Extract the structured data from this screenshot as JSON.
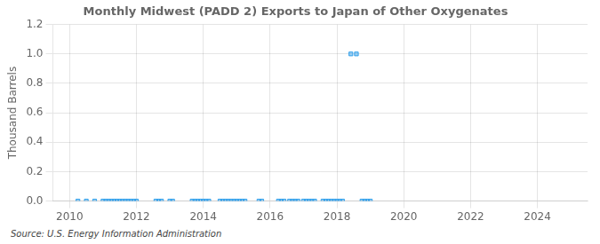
{
  "chart_data": {
    "type": "scatter",
    "title": "Monthly Midwest (PADD 2) Exports to Japan of Other Oxygenates",
    "y_label": "Thousand Barrels",
    "annotations": [
      "Source: U.S. Energy Information Administration"
    ],
    "marker": "square",
    "grid": true,
    "xlim": [
      2009.5,
      2025.5
    ],
    "ylim": [
      0,
      1.2
    ],
    "xticks": [
      2010,
      2012,
      2014,
      2016,
      2018,
      2020,
      2022,
      2024
    ],
    "yticks": [
      {
        "value": 0.0,
        "label": "0.0"
      },
      0.2,
      0.4,
      0.6,
      0.8,
      {
        "value": 1.0,
        "label": "1.0"
      },
      1.2
    ],
    "x": [
      2010.25,
      2010.5,
      2010.75,
      2011.0,
      2011.083,
      2011.167,
      2011.25,
      2011.333,
      2011.417,
      2011.5,
      2011.583,
      2011.667,
      2011.75,
      2011.833,
      2011.917,
      2012.0,
      2012.583,
      2012.667,
      2012.75,
      2013.0,
      2013.083,
      2013.667,
      2013.75,
      2013.833,
      2013.917,
      2014.0,
      2014.083,
      2014.167,
      2014.5,
      2014.583,
      2014.667,
      2014.75,
      2014.833,
      2014.917,
      2015.0,
      2015.083,
      2015.167,
      2015.25,
      2015.667,
      2015.75,
      2016.25,
      2016.333,
      2016.417,
      2016.583,
      2016.667,
      2016.75,
      2016.833,
      2017.0,
      2017.083,
      2017.167,
      2017.25,
      2017.333,
      2017.583,
      2017.667,
      2017.75,
      2017.833,
      2017.917,
      2018.0,
      2018.083,
      2018.167,
      2018.417,
      2018.583,
      2018.75,
      2018.833,
      2018.917,
      2019.0
    ],
    "values": [
      0.0,
      0.0,
      0.0,
      0.0,
      0.0,
      0.0,
      0.0,
      0.0,
      0.0,
      0.0,
      0.0,
      0.0,
      0.0,
      0.0,
      0.0,
      0.0,
      0.0,
      0.0,
      0.0,
      0.0,
      0.0,
      0.0,
      0.0,
      0.0,
      0.0,
      0.0,
      0.0,
      0.0,
      0.0,
      0.0,
      0.0,
      0.0,
      0.0,
      0.0,
      0.0,
      0.0,
      0.0,
      0.0,
      0.0,
      0.0,
      0.0,
      0.0,
      0.0,
      0.0,
      0.0,
      0.0,
      0.0,
      0.0,
      0.0,
      0.0,
      0.0,
      0.0,
      0.0,
      0.0,
      0.0,
      0.0,
      0.0,
      0.0,
      0.0,
      0.0,
      1.0,
      1.0,
      0.0,
      0.0,
      0.0,
      0.0
    ]
  }
}
